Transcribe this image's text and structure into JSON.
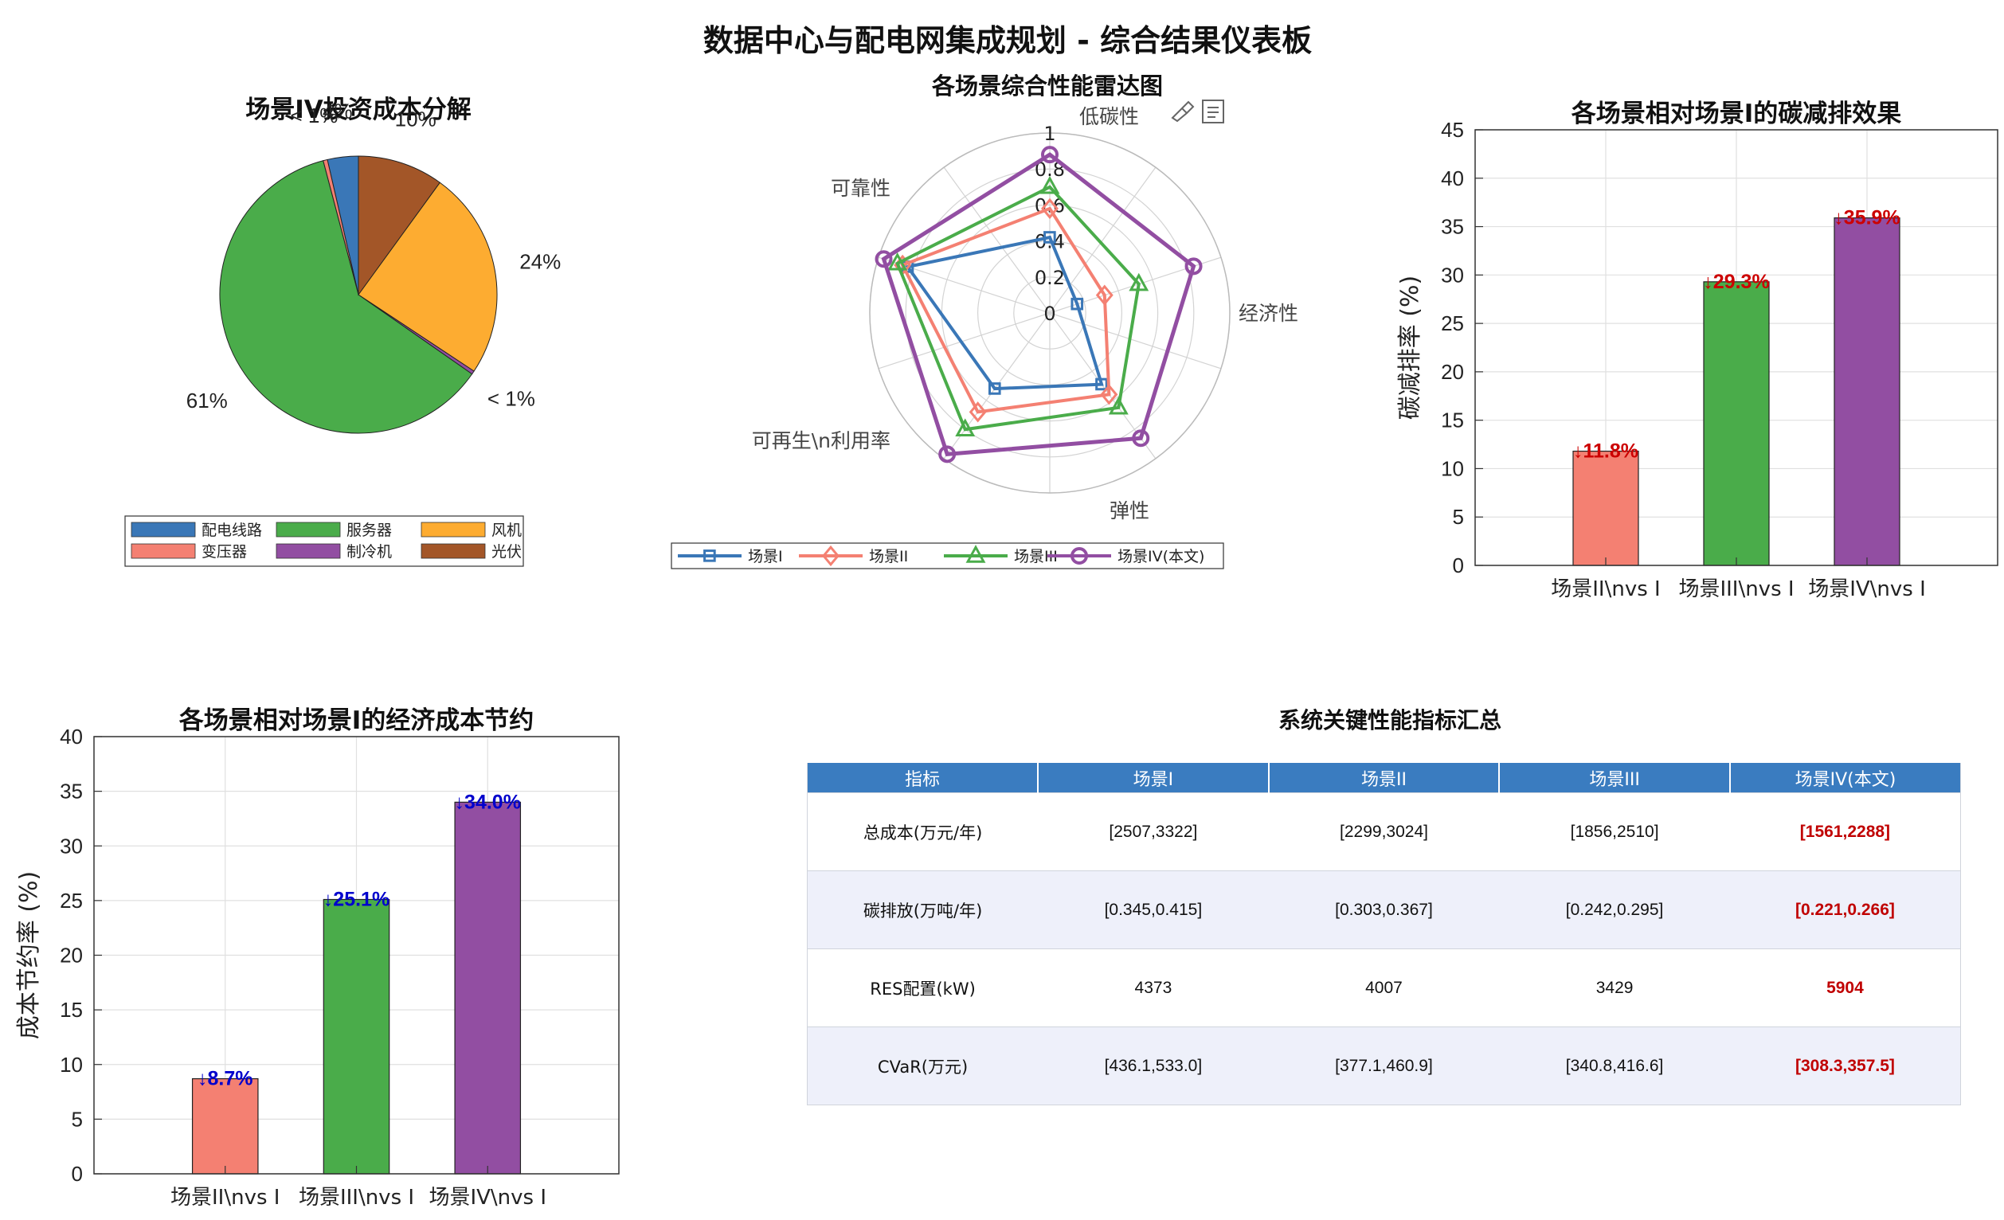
{
  "title": "数据中心与配电网集成规划 - 综合结果仪表板",
  "colors": {
    "blue": "#3a77b7",
    "salmon": "#f48072",
    "green": "#4aac4a",
    "purple": "#924ea2",
    "orange": "#fdac31",
    "brown": "#a35628",
    "red_text": "#cc0000",
    "blue_text": "#0000cc",
    "table_header": "#3a7cc0"
  },
  "toolbar": {
    "icons": [
      "brush-icon",
      "data-tips-icon"
    ]
  },
  "chart_data": [
    {
      "id": "pie",
      "type": "pie",
      "title": "场景IV投资成本分解",
      "slices": [
        {
          "name": "配电线路",
          "value": 3.6,
          "label": "4%",
          "color": "#3a77b7"
        },
        {
          "name": "变压器",
          "value": 0.5,
          "label": "< 1%",
          "color": "#f48072"
        },
        {
          "name": "服务器",
          "value": 61.2,
          "label": "61%",
          "color": "#4aac4a"
        },
        {
          "name": "制冷机",
          "value": 0.4,
          "label": "< 1%",
          "color": "#924ea2"
        },
        {
          "name": "风机",
          "value": 24.3,
          "label": "24%",
          "color": "#fdac31"
        },
        {
          "name": "光伏",
          "value": 10.0,
          "label": "10%",
          "color": "#a35628"
        }
      ],
      "legend": {
        "placement": "bottom",
        "entries": [
          "配电线路",
          "服务器",
          "风机",
          "变压器",
          "制冷机",
          "光伏"
        ]
      }
    },
    {
      "id": "radar",
      "type": "radar",
      "title": "各场景综合性能雷达图",
      "axes": [
        "低碳性",
        "经济性",
        "弹性",
        "可再生\\n利用率",
        "可靠性"
      ],
      "rticks": [
        "0",
        "0.2",
        "0.4",
        "0.6",
        "0.8",
        "1"
      ],
      "rlim": [
        0,
        1
      ],
      "series": [
        {
          "name": "场景I",
          "marker": "square",
          "color": "#3a77b7",
          "values": [
            0.42,
            0.16,
            0.49,
            0.52,
            0.83
          ]
        },
        {
          "name": "场景II",
          "marker": "diamond",
          "color": "#f48072",
          "values": [
            0.58,
            0.32,
            0.56,
            0.68,
            0.86
          ]
        },
        {
          "name": "场景III",
          "marker": "triangle",
          "color": "#4aac4a",
          "values": [
            0.7,
            0.52,
            0.65,
            0.8,
            0.89
          ]
        },
        {
          "name": "场景IV(本文)",
          "marker": "circle",
          "color": "#924ea2",
          "values": [
            0.88,
            0.84,
            0.86,
            0.97,
            0.97
          ]
        }
      ],
      "legend": {
        "placement": "bottom",
        "entries": [
          "场景I",
          "场景II",
          "场景III",
          "场景IV(本文)"
        ]
      }
    },
    {
      "id": "carbon",
      "type": "bar",
      "title": "各场景相对场景I的碳减排效果",
      "ylabel": "碳减排率 (%)",
      "ylim": [
        0,
        45
      ],
      "yticks": [
        "0",
        "5",
        "10",
        "15",
        "20",
        "25",
        "30",
        "35",
        "40",
        "45"
      ],
      "categories": [
        "场景II\\nvs I",
        "场景III\\nvs I",
        "场景IV\\nvs I"
      ],
      "values": [
        11.8,
        29.3,
        35.9
      ],
      "labels": [
        "↓11.8%",
        "↓29.3%",
        "↓35.9%"
      ],
      "bar_colors": [
        "#f48072",
        "#4aac4a",
        "#924ea2"
      ],
      "grid": true
    },
    {
      "id": "cost",
      "type": "bar",
      "title": "各场景相对场景I的经济成本节约",
      "ylabel": "成本节约率 (%)",
      "ylim": [
        0,
        40
      ],
      "yticks": [
        "0",
        "5",
        "10",
        "15",
        "20",
        "25",
        "30",
        "35",
        "40"
      ],
      "categories": [
        "场景II\\nvs I",
        "场景III\\nvs I",
        "场景IV\\nvs I"
      ],
      "values": [
        8.7,
        25.1,
        34.0
      ],
      "labels": [
        "↓8.7%",
        "↓25.1%",
        "↓34.0%"
      ],
      "bar_colors": [
        "#f48072",
        "#4aac4a",
        "#924ea2"
      ],
      "grid": true
    },
    {
      "id": "table",
      "type": "table",
      "title": "系统关键性能指标汇总",
      "columns": [
        "指标",
        "场景I",
        "场景II",
        "场景III",
        "场景IV(本文)"
      ],
      "rows": [
        [
          "总成本(万元/年)",
          "[2507,3322]",
          "[2299,3024]",
          "[1856,2510]",
          "[1561,2288]"
        ],
        [
          "碳排放(万吨/年)",
          "[0.345,0.415]",
          "[0.303,0.367]",
          "[0.242,0.295]",
          "[0.221,0.266]"
        ],
        [
          "RES配置(kW)",
          "4373",
          "4007",
          "3429",
          "5904"
        ],
        [
          "CVaR(万元)",
          "[436.1,533.0]",
          "[377.1,460.9]",
          "[340.8,416.6]",
          "[308.3,357.5]"
        ]
      ],
      "highlight_column": 4
    }
  ]
}
